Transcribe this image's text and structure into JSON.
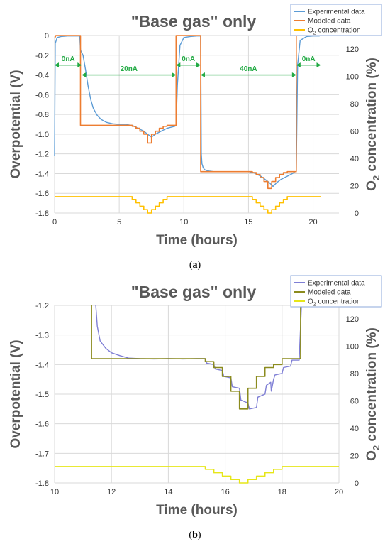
{
  "colors": {
    "experimental": "#5b9bd5",
    "modeled": "#ed7d31",
    "o2": "#ffc000",
    "annotation": "#22aa44",
    "experimental_b": "#7f7fd5",
    "modeled_b": "#8b8b1e",
    "o2_b": "#e6e619",
    "grid": "#d9d9d9"
  },
  "chart_data": [
    {
      "id": "a",
      "type": "line",
      "title": "\"Base gas\" only",
      "xlabel": "Time (hours)",
      "ylabel": "Overpotential (V)",
      "y2label": "O2 concentration (%)",
      "caption": "a",
      "xlim": [
        0,
        22
      ],
      "ylim": [
        -1.8,
        0
      ],
      "y2lim": [
        0,
        130
      ],
      "x_ticks": [
        "0",
        "5",
        "10",
        "15",
        "20"
      ],
      "x_tick_values": [
        0,
        5,
        10,
        15,
        20
      ],
      "y_ticks": [
        "0",
        "-0.2",
        "-0.4",
        "-0.6",
        "-0.8",
        "-1.0",
        "-1.2",
        "-1.4",
        "-1.6",
        "-1.8"
      ],
      "y_tick_values": [
        0,
        -0.2,
        -0.4,
        -0.6,
        -0.8,
        -1.0,
        -1.2,
        -1.4,
        -1.6,
        -1.8
      ],
      "y2_ticks": [
        "0",
        "20",
        "40",
        "60",
        "80",
        "100",
        "120"
      ],
      "y2_tick_values": [
        0,
        20,
        40,
        60,
        80,
        100,
        120
      ],
      "grid": true,
      "legend_position": "top-right",
      "legend": [
        "Experimental data",
        "Modeled data",
        "concentration"
      ],
      "legend_o2_prefix": "O",
      "legend_o2_sub": "2",
      "annotations": [
        {
          "label": "0nA",
          "x_from": 0,
          "x_to": 2.1,
          "y": -0.3,
          "label_y": -0.26
        },
        {
          "label": "20nA",
          "x_from": 2.1,
          "x_to": 9.4,
          "y": -0.4,
          "label_y": -0.36
        },
        {
          "label": "0nA",
          "x_from": 9.4,
          "x_to": 11.3,
          "y": -0.3,
          "label_y": -0.26
        },
        {
          "label": "40nA",
          "x_from": 11.3,
          "x_to": 18.7,
          "y": -0.4,
          "label_y": -0.36
        },
        {
          "label": "0nA",
          "x_from": 18.7,
          "x_to": 20.6,
          "y": -0.3,
          "label_y": -0.26
        }
      ],
      "series": [
        {
          "name": "Experimental data",
          "axis": "left",
          "x": [
            0,
            0.05,
            0.2,
            0.5,
            1,
            1.5,
            1.95,
            2.0,
            2.05,
            2.2,
            2.4,
            2.6,
            2.8,
            3.0,
            3.3,
            3.6,
            4.0,
            4.5,
            5.0,
            5.5,
            5.9,
            6.0,
            6.3,
            6.6,
            6.9,
            7.2,
            7.5,
            7.8,
            8.1,
            8.4,
            8.7,
            9.0,
            9.3,
            9.4,
            9.5,
            9.7,
            10,
            10.5,
            11.0,
            11.3,
            11.35,
            11.4,
            11.5,
            11.6,
            11.8,
            12.0,
            12.3,
            12.6,
            13,
            14,
            15,
            15.4,
            15.7,
            16.0,
            16.3,
            16.6,
            16.9,
            17.2,
            17.5,
            17.8,
            18.1,
            18.4,
            18.6,
            18.7,
            18.8,
            19.0,
            19.5,
            20.0,
            20.5
          ],
          "y": [
            -1.22,
            -0.08,
            -0.02,
            -0.01,
            -0.005,
            -0.005,
            -0.005,
            -0.15,
            -0.16,
            -0.2,
            -0.35,
            -0.52,
            -0.65,
            -0.74,
            -0.81,
            -0.85,
            -0.88,
            -0.895,
            -0.9,
            -0.9,
            -0.91,
            -0.91,
            -0.93,
            -0.95,
            -0.97,
            -1.0,
            -1.03,
            -1.0,
            -0.98,
            -0.96,
            -0.94,
            -0.93,
            -0.92,
            -0.91,
            -0.5,
            -0.1,
            -0.02,
            -0.01,
            -0.005,
            -0.005,
            -1.2,
            -1.3,
            -1.34,
            -1.36,
            -1.37,
            -1.375,
            -1.38,
            -1.38,
            -1.38,
            -1.38,
            -1.38,
            -1.39,
            -1.41,
            -1.43,
            -1.46,
            -1.49,
            -1.53,
            -1.49,
            -1.46,
            -1.44,
            -1.42,
            -1.4,
            -1.38,
            -1.38,
            -0.3,
            -0.05,
            -0.01,
            -0.005,
            -0.005
          ]
        },
        {
          "name": "Modeled data",
          "axis": "left",
          "x": [
            0,
            0.1,
            2.0,
            2.0,
            6.0,
            6.0,
            6.3,
            6.3,
            6.6,
            6.6,
            6.9,
            6.9,
            7.2,
            7.2,
            7.5,
            7.5,
            7.8,
            7.8,
            8.1,
            8.1,
            8.4,
            8.4,
            8.7,
            8.7,
            9.0,
            9.0,
            9.4,
            9.4,
            11.3,
            11.3,
            15.3,
            15.3,
            15.6,
            15.6,
            15.9,
            15.9,
            16.2,
            16.2,
            16.5,
            16.5,
            16.8,
            16.8,
            17.1,
            17.1,
            17.4,
            17.4,
            17.7,
            17.7,
            18.0,
            18.0,
            18.3,
            18.3,
            18.7,
            18.7,
            20.6
          ],
          "y": [
            -0.03,
            0,
            0,
            -0.91,
            -0.91,
            -0.92,
            -0.92,
            -0.94,
            -0.94,
            -0.97,
            -0.97,
            -1.0,
            -1.0,
            -1.09,
            -1.09,
            -1.0,
            -1.0,
            -0.97,
            -0.97,
            -0.94,
            -0.94,
            -0.92,
            -0.92,
            -0.91,
            -0.91,
            -0.91,
            -0.91,
            0,
            0,
            -1.38,
            -1.38,
            -1.39,
            -1.39,
            -1.41,
            -1.41,
            -1.44,
            -1.44,
            -1.48,
            -1.48,
            -1.55,
            -1.55,
            -1.48,
            -1.48,
            -1.44,
            -1.44,
            -1.41,
            -1.41,
            -1.39,
            -1.39,
            -1.38,
            -1.38,
            -1.38,
            -1.38,
            0,
            0
          ]
        },
        {
          "name": "O2 concentration",
          "axis": "right",
          "x": [
            0,
            6.0,
            6.0,
            6.3,
            6.3,
            6.6,
            6.6,
            6.9,
            6.9,
            7.2,
            7.2,
            7.5,
            7.5,
            7.8,
            7.8,
            8.1,
            8.1,
            8.4,
            8.4,
            8.7,
            8.7,
            9.0,
            9.0,
            15.3,
            15.3,
            15.6,
            15.6,
            15.9,
            15.9,
            16.2,
            16.2,
            16.5,
            16.5,
            16.8,
            16.8,
            17.1,
            17.1,
            17.4,
            17.4,
            17.7,
            17.7,
            18.0,
            18.0,
            18.3,
            18.3,
            20.6
          ],
          "y": [
            12,
            12,
            10,
            10,
            7.5,
            7.5,
            5,
            5,
            2.5,
            2.5,
            0,
            0,
            2.5,
            2.5,
            5,
            5,
            7.5,
            7.5,
            10,
            10,
            12,
            12,
            12,
            12,
            10,
            10,
            7.5,
            7.5,
            5,
            5,
            2.5,
            2.5,
            0,
            0,
            2.5,
            2.5,
            5,
            5,
            7.5,
            7.5,
            10,
            10,
            12,
            12,
            12,
            12
          ]
        }
      ]
    },
    {
      "id": "b",
      "type": "line",
      "title": "\"Base gas\" only",
      "xlabel": "Time (hours)",
      "ylabel": "Overpotential (V)",
      "y2label": "O2 concentration (%)",
      "caption": "b",
      "xlim": [
        10,
        20
      ],
      "ylim": [
        -1.8,
        -1.2
      ],
      "y2lim": [
        0,
        130
      ],
      "x_ticks": [
        "10",
        "12",
        "14",
        "16",
        "18",
        "20"
      ],
      "x_tick_values": [
        10,
        12,
        14,
        16,
        18,
        20
      ],
      "y_ticks": [
        "-1.2",
        "-1.3",
        "-1.4",
        "-1.5",
        "-1.6",
        "-1.7",
        "-1.8"
      ],
      "y_tick_values": [
        -1.2,
        -1.3,
        -1.4,
        -1.5,
        -1.6,
        -1.7,
        -1.8
      ],
      "y2_ticks": [
        "0",
        "20",
        "40",
        "60",
        "80",
        "100",
        "120"
      ],
      "y2_tick_values": [
        0,
        20,
        40,
        60,
        80,
        100,
        120
      ],
      "grid": true,
      "legend_position": "top-right",
      "legend": [
        "Experimental data",
        "Modeled data",
        "concentration"
      ],
      "legend_o2_prefix": "O",
      "legend_o2_sub": "2",
      "series": [
        {
          "name": "Experimental data",
          "axis": "left",
          "x": [
            11.45,
            11.5,
            11.6,
            11.8,
            12.0,
            12.3,
            12.6,
            13.0,
            13.5,
            14.0,
            14.5,
            15.0,
            15.3,
            15.35,
            15.6,
            15.65,
            15.9,
            15.95,
            16.2,
            16.25,
            16.5,
            16.55,
            16.8,
            16.85,
            17.1,
            17.15,
            17.4,
            17.45,
            17.6,
            17.62,
            17.7,
            17.75,
            18.0,
            18.05,
            18.3,
            18.35,
            18.6,
            18.68
          ],
          "y": [
            -1.2,
            -1.27,
            -1.32,
            -1.345,
            -1.36,
            -1.37,
            -1.378,
            -1.38,
            -1.381,
            -1.38,
            -1.381,
            -1.38,
            -1.38,
            -1.395,
            -1.4,
            -1.415,
            -1.42,
            -1.44,
            -1.445,
            -1.475,
            -1.48,
            -1.52,
            -1.53,
            -1.55,
            -1.545,
            -1.51,
            -1.5,
            -1.47,
            -1.46,
            -1.49,
            -1.45,
            -1.435,
            -1.43,
            -1.41,
            -1.405,
            -1.385,
            -1.385,
            -1.2
          ]
        },
        {
          "name": "Modeled data",
          "axis": "left",
          "x": [
            11.3,
            11.3,
            15.3,
            15.3,
            15.6,
            15.6,
            15.9,
            15.9,
            16.2,
            16.2,
            16.5,
            16.5,
            16.8,
            16.8,
            17.1,
            17.1,
            17.4,
            17.4,
            17.7,
            17.7,
            18.0,
            18.0,
            18.3,
            18.3,
            18.65,
            18.65
          ],
          "y": [
            -1.2,
            -1.38,
            -1.38,
            -1.39,
            -1.39,
            -1.41,
            -1.41,
            -1.44,
            -1.44,
            -1.49,
            -1.49,
            -1.55,
            -1.55,
            -1.48,
            -1.48,
            -1.44,
            -1.44,
            -1.41,
            -1.41,
            -1.4,
            -1.4,
            -1.38,
            -1.38,
            -1.38,
            -1.38,
            -1.2
          ]
        },
        {
          "name": "O2 concentration",
          "axis": "right",
          "x": [
            10,
            15.3,
            15.3,
            15.6,
            15.6,
            15.9,
            15.9,
            16.2,
            16.2,
            16.5,
            16.5,
            16.8,
            16.8,
            17.1,
            17.1,
            17.4,
            17.4,
            17.7,
            17.7,
            18.0,
            18.0,
            18.3,
            18.3,
            20
          ],
          "y": [
            12,
            12,
            10,
            10,
            7.5,
            7.5,
            5,
            5,
            2.5,
            2.5,
            0,
            0,
            2.5,
            2.5,
            5,
            5,
            7.5,
            7.5,
            10,
            10,
            12,
            12,
            12,
            12
          ]
        }
      ]
    }
  ]
}
